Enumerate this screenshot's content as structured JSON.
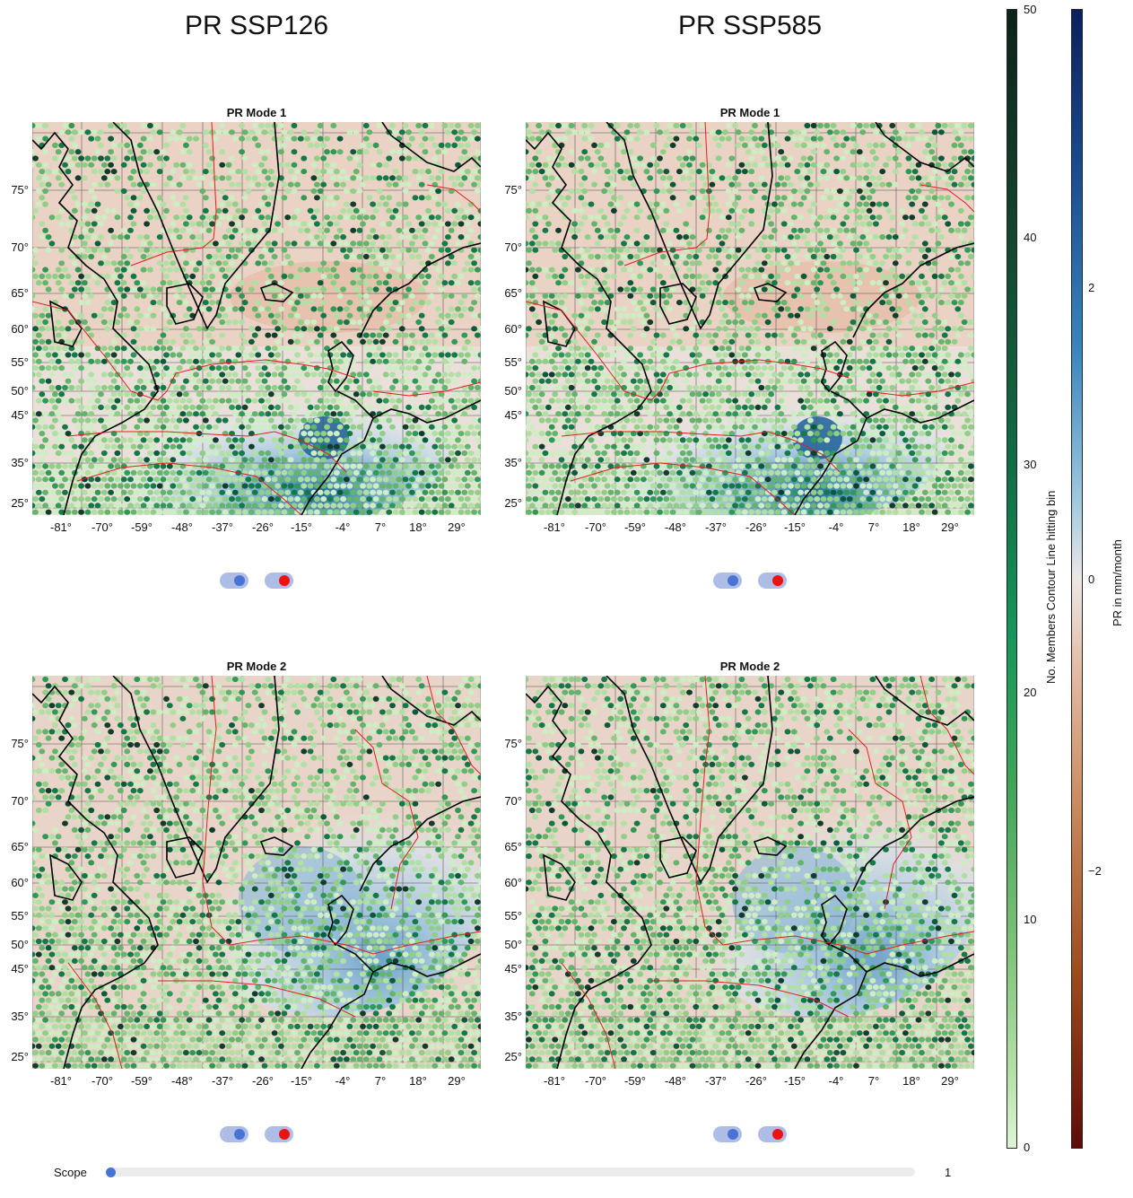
{
  "columns": [
    {
      "title": "PR SSP126"
    },
    {
      "title": "PR SSP585"
    }
  ],
  "panels": [
    {
      "title": "PR Mode 1",
      "mode": 1
    },
    {
      "title": "PR Mode 1",
      "mode": 1
    },
    {
      "title": "PR Mode 2",
      "mode": 2
    },
    {
      "title": "PR Mode 2",
      "mode": 2
    }
  ],
  "lat_labels": [
    "75°",
    "70°",
    "65°",
    "60°",
    "55°",
    "50°",
    "45°",
    "35°",
    "25°"
  ],
  "lon_labels": [
    "-81°",
    "-70°",
    "-59°",
    "-48°",
    "-37°",
    "-26°",
    "-15°",
    "-4°",
    "7°",
    "18°",
    "29°"
  ],
  "count_colorbar": {
    "label": "No. Members Contour Line hitting bin",
    "ticks": [
      "50",
      "40",
      "30",
      "20",
      "10",
      "0"
    ],
    "range": [
      0,
      50
    ]
  },
  "pr_colorbar": {
    "label": "PR in mm/month",
    "ticks": [
      "2",
      "0",
      "−2"
    ],
    "range": [
      -3.5,
      3.5
    ]
  },
  "toggles": {
    "blue_color": "#4a73d6",
    "red_color": "#ee1111",
    "track_color": "#aebde6"
  },
  "scope": {
    "label": "Scope",
    "value": "1",
    "fraction": 0
  },
  "colors": {
    "coast": "#000000",
    "contour": "#e02020",
    "grid": "#555555",
    "land_bg": "#eadfd9",
    "warm": "#e9c7b5",
    "cool": "#c9dcea",
    "deep_blue": "#1d5f97"
  }
}
